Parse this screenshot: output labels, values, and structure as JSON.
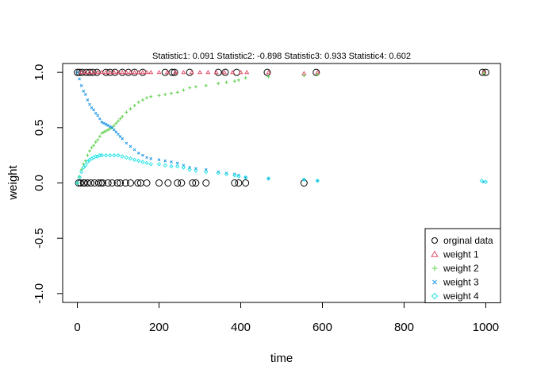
{
  "chart_data": {
    "type": "scatter",
    "title": "Statistic1: 0.091  Statistic2: -0.898  Statistic3: 0.933  Statistic4: 0.602",
    "xlabel": "time",
    "ylabel": "weight",
    "xlim": [
      -36,
      1036
    ],
    "ylim": [
      -1.08,
      1.08
    ],
    "x_ticks": [
      0,
      200,
      400,
      600,
      800,
      1000
    ],
    "x_tick_labels": [
      "0",
      "200",
      "400",
      "600",
      "800",
      "1000"
    ],
    "y_ticks": [
      -1.0,
      -0.5,
      0.0,
      0.5,
      1.0
    ],
    "y_tick_labels": [
      "-1.0",
      "-0.5",
      "0.0",
      "0.5",
      "1.0"
    ],
    "legend_position": "bottom-right",
    "series": [
      {
        "name": "orginal data",
        "marker": "circle",
        "color": "#000000",
        "points": [
          [
            0,
            1
          ],
          [
            3,
            0
          ],
          [
            5,
            1
          ],
          [
            8,
            0
          ],
          [
            12,
            1
          ],
          [
            15,
            0
          ],
          [
            18,
            0
          ],
          [
            22,
            1
          ],
          [
            25,
            0
          ],
          [
            30,
            1
          ],
          [
            33,
            0
          ],
          [
            38,
            1
          ],
          [
            42,
            0
          ],
          [
            48,
            1
          ],
          [
            52,
            0
          ],
          [
            58,
            0
          ],
          [
            62,
            0
          ],
          [
            70,
            1
          ],
          [
            75,
            0
          ],
          [
            80,
            1
          ],
          [
            85,
            0
          ],
          [
            92,
            1
          ],
          [
            98,
            0
          ],
          [
            105,
            0
          ],
          [
            110,
            1
          ],
          [
            118,
            0
          ],
          [
            125,
            1
          ],
          [
            130,
            0
          ],
          [
            140,
            1
          ],
          [
            148,
            0
          ],
          [
            155,
            0
          ],
          [
            160,
            1
          ],
          [
            170,
            0
          ],
          [
            200,
            0
          ],
          [
            215,
            1
          ],
          [
            222,
            0
          ],
          [
            232,
            1
          ],
          [
            238,
            1
          ],
          [
            245,
            0
          ],
          [
            255,
            0
          ],
          [
            275,
            1
          ],
          [
            282,
            0
          ],
          [
            290,
            0
          ],
          [
            315,
            0
          ],
          [
            345,
            1
          ],
          [
            362,
            1
          ],
          [
            385,
            0
          ],
          [
            390,
            1
          ],
          [
            395,
            0
          ],
          [
            412,
            0
          ],
          [
            465,
            1
          ],
          [
            555,
            0
          ],
          [
            585,
            1
          ],
          [
            992,
            1
          ],
          [
            1000,
            1
          ]
        ]
      },
      {
        "name": "weight 1",
        "marker": "triangle",
        "color": "#DF536B",
        "points": [
          [
            10,
            1
          ],
          [
            20,
            1
          ],
          [
            30,
            1
          ],
          [
            40,
            1
          ],
          [
            50,
            1
          ],
          [
            60,
            1
          ],
          [
            70,
            1
          ],
          [
            80,
            1
          ],
          [
            90,
            1
          ],
          [
            100,
            1
          ],
          [
            110,
            1
          ],
          [
            120,
            1
          ],
          [
            130,
            1
          ],
          [
            140,
            1
          ],
          [
            150,
            1
          ],
          [
            160,
            1
          ],
          [
            170,
            1
          ],
          [
            180,
            1
          ],
          [
            200,
            1
          ],
          [
            220,
            1
          ],
          [
            240,
            1
          ],
          [
            260,
            1
          ],
          [
            280,
            1
          ],
          [
            300,
            1
          ],
          [
            320,
            1
          ],
          [
            340,
            1
          ],
          [
            360,
            1
          ],
          [
            380,
            1
          ],
          [
            400,
            1
          ],
          [
            415,
            1
          ],
          [
            468,
            1
          ],
          [
            555,
            0.99
          ],
          [
            588,
            1
          ],
          [
            995,
            1
          ]
        ]
      },
      {
        "name": "weight 2",
        "marker": "plus",
        "color": "#61D04F",
        "points": [
          [
            0,
            0
          ],
          [
            5,
            0.06
          ],
          [
            10,
            0.12
          ],
          [
            15,
            0.17
          ],
          [
            20,
            0.2
          ],
          [
            25,
            0.25
          ],
          [
            30,
            0.29
          ],
          [
            35,
            0.32
          ],
          [
            40,
            0.34
          ],
          [
            45,
            0.37
          ],
          [
            50,
            0.39
          ],
          [
            55,
            0.42
          ],
          [
            60,
            0.45
          ],
          [
            65,
            0.46
          ],
          [
            70,
            0.47
          ],
          [
            75,
            0.48
          ],
          [
            80,
            0.49
          ],
          [
            85,
            0.5
          ],
          [
            90,
            0.52
          ],
          [
            95,
            0.54
          ],
          [
            100,
            0.56
          ],
          [
            105,
            0.58
          ],
          [
            110,
            0.6
          ],
          [
            120,
            0.64
          ],
          [
            130,
            0.67
          ],
          [
            140,
            0.7
          ],
          [
            150,
            0.73
          ],
          [
            160,
            0.75
          ],
          [
            170,
            0.77
          ],
          [
            180,
            0.78
          ],
          [
            200,
            0.79
          ],
          [
            215,
            0.8
          ],
          [
            230,
            0.81
          ],
          [
            245,
            0.82
          ],
          [
            260,
            0.84
          ],
          [
            275,
            0.86
          ],
          [
            290,
            0.87
          ],
          [
            315,
            0.88
          ],
          [
            345,
            0.9
          ],
          [
            365,
            0.91
          ],
          [
            385,
            0.92
          ],
          [
            395,
            0.93
          ],
          [
            412,
            0.95
          ],
          [
            468,
            0.96
          ],
          [
            555,
            0.97
          ],
          [
            588,
            0.98
          ],
          [
            995,
            0.99
          ]
        ]
      },
      {
        "name": "weight 3",
        "marker": "cross",
        "color": "#2297E6",
        "points": [
          [
            0,
            1
          ],
          [
            5,
            0.94
          ],
          [
            10,
            0.88
          ],
          [
            15,
            0.83
          ],
          [
            20,
            0.8
          ],
          [
            25,
            0.75
          ],
          [
            30,
            0.71
          ],
          [
            35,
            0.68
          ],
          [
            40,
            0.66
          ],
          [
            45,
            0.63
          ],
          [
            50,
            0.61
          ],
          [
            55,
            0.58
          ],
          [
            60,
            0.55
          ],
          [
            65,
            0.54
          ],
          [
            70,
            0.53
          ],
          [
            75,
            0.52
          ],
          [
            80,
            0.51
          ],
          [
            85,
            0.5
          ],
          [
            90,
            0.48
          ],
          [
            95,
            0.46
          ],
          [
            100,
            0.44
          ],
          [
            105,
            0.42
          ],
          [
            110,
            0.4
          ],
          [
            120,
            0.36
          ],
          [
            130,
            0.33
          ],
          [
            140,
            0.3
          ],
          [
            150,
            0.27
          ],
          [
            160,
            0.25
          ],
          [
            170,
            0.23
          ],
          [
            180,
            0.22
          ],
          [
            200,
            0.21
          ],
          [
            215,
            0.2
          ],
          [
            230,
            0.19
          ],
          [
            245,
            0.18
          ],
          [
            260,
            0.16
          ],
          [
            275,
            0.14
          ],
          [
            290,
            0.13
          ],
          [
            315,
            0.12
          ],
          [
            345,
            0.1
          ],
          [
            365,
            0.09
          ],
          [
            385,
            0.08
          ],
          [
            395,
            0.07
          ],
          [
            412,
            0.05
          ],
          [
            468,
            0.04
          ],
          [
            555,
            0.03
          ],
          [
            588,
            0.02
          ],
          [
            995,
            0.01
          ]
        ]
      },
      {
        "name": "weight 4",
        "marker": "diamond",
        "color": "#28E2E5",
        "points": [
          [
            0,
            0
          ],
          [
            5,
            0.05
          ],
          [
            10,
            0.1
          ],
          [
            15,
            0.14
          ],
          [
            20,
            0.16
          ],
          [
            25,
            0.19
          ],
          [
            30,
            0.21
          ],
          [
            35,
            0.22
          ],
          [
            40,
            0.23
          ],
          [
            45,
            0.24
          ],
          [
            50,
            0.24
          ],
          [
            55,
            0.25
          ],
          [
            60,
            0.25
          ],
          [
            70,
            0.25
          ],
          [
            80,
            0.25
          ],
          [
            90,
            0.25
          ],
          [
            100,
            0.25
          ],
          [
            110,
            0.24
          ],
          [
            120,
            0.23
          ],
          [
            130,
            0.22
          ],
          [
            140,
            0.21
          ],
          [
            150,
            0.2
          ],
          [
            160,
            0.19
          ],
          [
            170,
            0.18
          ],
          [
            180,
            0.17
          ],
          [
            200,
            0.17
          ],
          [
            215,
            0.16
          ],
          [
            230,
            0.15
          ],
          [
            245,
            0.15
          ],
          [
            260,
            0.14
          ],
          [
            275,
            0.12
          ],
          [
            290,
            0.11
          ],
          [
            315,
            0.1
          ],
          [
            345,
            0.09
          ],
          [
            365,
            0.08
          ],
          [
            385,
            0.07
          ],
          [
            395,
            0.06
          ],
          [
            412,
            0.05
          ],
          [
            468,
            0.04
          ],
          [
            555,
            0.03
          ],
          [
            588,
            0.02
          ],
          [
            990,
            0.02
          ],
          [
            1000,
            0.01
          ]
        ]
      }
    ]
  }
}
